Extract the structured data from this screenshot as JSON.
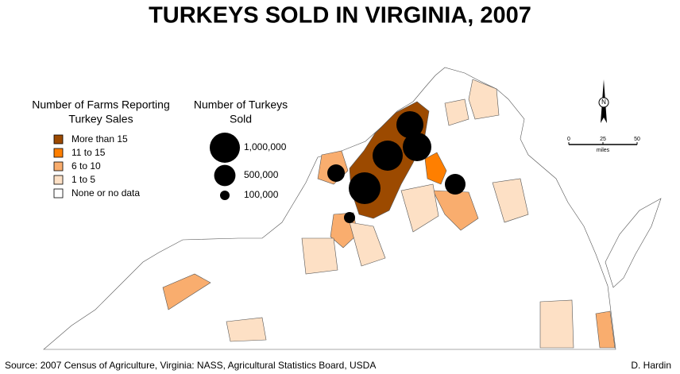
{
  "title": "TURKEYS SOLD IN VIRGINIA, 2007",
  "farms_legend": {
    "title_lines": [
      "Number of Farms Reporting",
      "Turkey Sales"
    ],
    "items": [
      {
        "label": "More than 15",
        "color": "#9c4a00"
      },
      {
        "label": "11 to 15",
        "color": "#ff7f00"
      },
      {
        "label": "6 to 10",
        "color": "#f9ad6e"
      },
      {
        "label": "1 to   5",
        "color": "#fde0c5"
      },
      {
        "label": "None or no data",
        "color": "#ffffff"
      }
    ]
  },
  "turkeys_legend": {
    "title_lines": [
      "Number of Turkeys",
      "Sold"
    ],
    "items": [
      {
        "value": 1000000,
        "label": "1,000,000"
      },
      {
        "value": 500000,
        "label": "500,000"
      },
      {
        "value": 100000,
        "label": "100,000"
      }
    ]
  },
  "scale_bar": {
    "ticks": [
      0,
      25,
      50
    ],
    "unit": "miles"
  },
  "north": "N",
  "source": "Source: 2007 Census of Agriculture, Virginia: NASS, Agricultural Statistics Board, USDA",
  "author": "D. Hardin"
}
